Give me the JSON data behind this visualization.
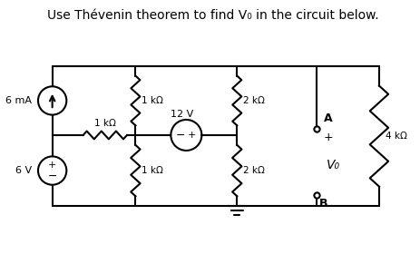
{
  "title": "Use Thévenin theorem to find V₀ in the circuit below.",
  "title_fontsize": 10,
  "bg_color": "#ffffff",
  "line_color": "#000000",
  "line_width": 1.5,
  "fig_width": 4.63,
  "fig_height": 2.8,
  "labels": {
    "6mA": "6 mA",
    "6V": "6 V",
    "12V": "12 V",
    "1k1": "1 kΩ",
    "1k2": "1 kΩ",
    "1k3": "1 kΩ",
    "2k1": "2 kΩ",
    "2k2": "2 kΩ",
    "4k": "4 kΩ",
    "Vo": "V₀",
    "A": "A",
    "B": "B",
    "plus": "+",
    "minus": "−"
  }
}
